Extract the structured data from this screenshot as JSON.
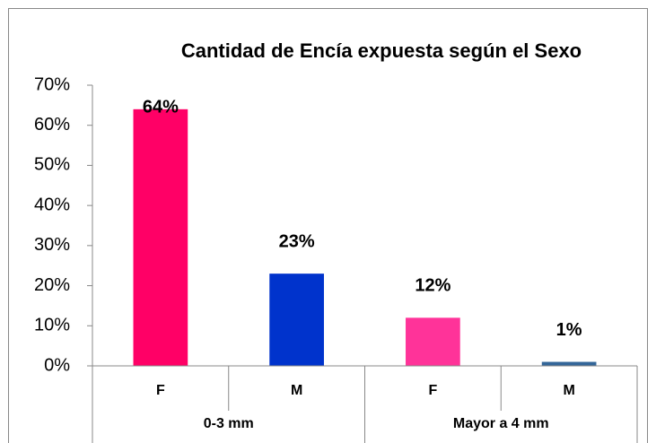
{
  "chart_data": {
    "type": "bar",
    "title": "Cantidad de Encía expuesta según el Sexo",
    "categories": [
      "F",
      "M",
      "F",
      "M"
    ],
    "groups": [
      "0-3 mm",
      "Mayor a 4 mm"
    ],
    "values": [
      64,
      23,
      12,
      1
    ],
    "value_labels": [
      "64%",
      "23%",
      "12%",
      "1%"
    ],
    "colors": [
      "#ff0066",
      "#0033cc",
      "#ff3399",
      "#336699"
    ],
    "ylim": [
      0,
      70
    ],
    "yticks": [
      {
        "value": 0,
        "label": "0%"
      },
      {
        "value": 10,
        "label": "10%"
      },
      {
        "value": 20,
        "label": "20%"
      },
      {
        "value": 30,
        "label": "30%"
      },
      {
        "value": 40,
        "label": "40%"
      },
      {
        "value": 50,
        "label": "50%"
      },
      {
        "value": 60,
        "label": "60%"
      },
      {
        "value": 70,
        "label": "70%"
      }
    ],
    "grid": false
  }
}
